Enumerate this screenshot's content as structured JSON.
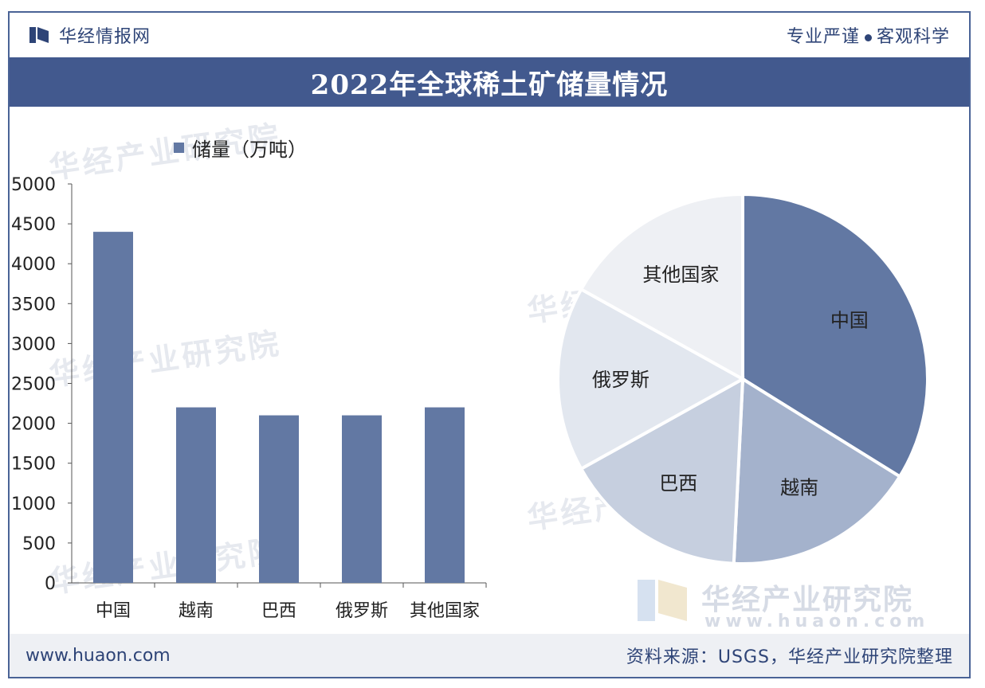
{
  "header": {
    "brand_name": "华经情报网",
    "motto_left": "专业严谨",
    "motto_right": "客观科学"
  },
  "title": "2022年全球稀土矿储量情况",
  "watermark": {
    "name": "华经产业研究院",
    "url": "www.huaon.com"
  },
  "footer": {
    "url": "www.huaon.com",
    "source": "资料来源：USGS，华经产业研究院整理"
  },
  "colors": {
    "bar": "#6278a3",
    "header_band": "#42598e",
    "pie": [
      "#6278a3",
      "#a4b2cc",
      "#c6cfdf",
      "#e2e7ef",
      "#eef0f4"
    ]
  },
  "chart_data": [
    {
      "type": "bar",
      "legend": "储量（万吨）",
      "categories": [
        "中国",
        "越南",
        "巴西",
        "俄罗斯",
        "其他国家"
      ],
      "series": [
        {
          "name": "储量（万吨）",
          "values": [
            4400,
            2200,
            2100,
            2100,
            2200
          ]
        }
      ],
      "yticks": [
        0,
        500,
        1000,
        1500,
        2000,
        2500,
        3000,
        3500,
        4000,
        4500,
        5000
      ],
      "ylim": [
        0,
        5000
      ],
      "legend_position": "top-left",
      "grid": false
    },
    {
      "type": "pie",
      "labels": [
        "中国",
        "越南",
        "巴西",
        "俄罗斯",
        "其他国家"
      ],
      "values": [
        4400,
        2200,
        2100,
        2100,
        2200
      ]
    }
  ]
}
